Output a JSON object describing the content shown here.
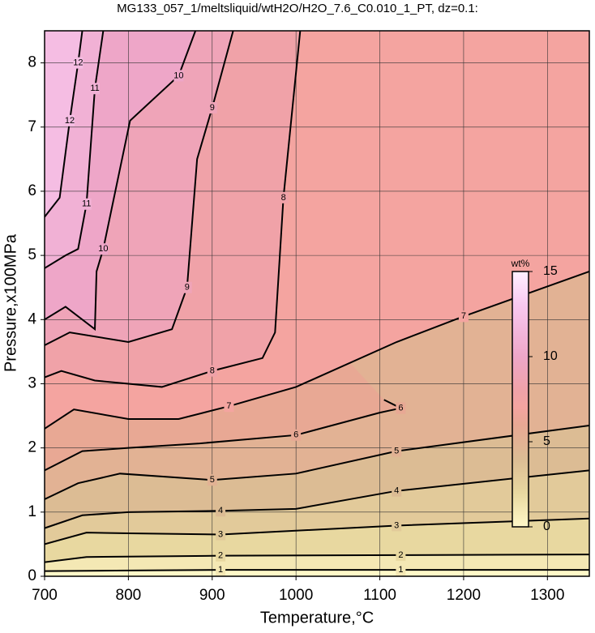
{
  "chart_data": {
    "type": "contour",
    "title": "MG133_057_1/meltsliquid/wtH2O/H2O_7.6_C0.010_1_PT, dz=0.1:",
    "x_label": "Temperature,°C",
    "y_label": "Pressure,x100MPa",
    "xlim": [
      700,
      1350
    ],
    "ylim": [
      0,
      8.5
    ],
    "xticks": [
      700,
      800,
      900,
      1000,
      1100,
      1200,
      1300
    ],
    "yticks": [
      0,
      1,
      2,
      3,
      4,
      5,
      6,
      7,
      8
    ],
    "grid": true,
    "colormap": [
      {
        "value": 0,
        "color": "#fff8c8"
      },
      {
        "value": 2,
        "color": "#e8d8a0"
      },
      {
        "value": 4,
        "color": "#dcbc94"
      },
      {
        "value": 6,
        "color": "#e8a894"
      },
      {
        "value": 7,
        "color": "#f4a4a0"
      },
      {
        "value": 8,
        "color": "#f0a2a8"
      },
      {
        "value": 10,
        "color": "#eea6c8"
      },
      {
        "value": 13,
        "color": "#f8c8f0"
      },
      {
        "value": 15,
        "color": "#fff0ff"
      }
    ],
    "colorbar": {
      "label": "wt%",
      "lim": [
        0,
        15
      ],
      "ticks": [
        0,
        5,
        10,
        15
      ]
    },
    "contours": [
      {
        "level": 1,
        "x": [
          700,
          800,
          910,
          1125,
          1350
        ],
        "y": [
          0.08,
          0.09,
          0.1,
          0.1,
          0.1
        ]
      },
      {
        "level": 2,
        "x": [
          700,
          750,
          910,
          1125,
          1350
        ],
        "y": [
          0.22,
          0.3,
          0.32,
          0.33,
          0.34
        ]
      },
      {
        "level": 3,
        "x": [
          700,
          750,
          800,
          910,
          1120,
          1350
        ],
        "y": [
          0.5,
          0.68,
          0.67,
          0.65,
          0.79,
          0.9
        ]
      },
      {
        "level": 4,
        "x": [
          700,
          745,
          800,
          910,
          1000,
          1120,
          1350
        ],
        "y": [
          0.75,
          0.95,
          1.0,
          1.02,
          1.05,
          1.33,
          1.65
        ]
      },
      {
        "level": 5,
        "x": [
          700,
          740,
          790,
          900,
          1000,
          1120,
          1350
        ],
        "y": [
          1.2,
          1.45,
          1.6,
          1.5,
          1.6,
          1.95,
          2.35
        ]
      },
      {
        "level": 6,
        "x": [
          700,
          745,
          800,
          885,
          1000,
          1100,
          1125,
          1105
        ],
        "y": [
          1.65,
          1.95,
          2.0,
          2.07,
          2.2,
          2.55,
          2.62,
          2.75
        ]
      },
      {
        "level": 7,
        "x": [
          700,
          735,
          800,
          860,
          920,
          1000,
          1120,
          1200,
          1350
        ],
        "y": [
          2.3,
          2.6,
          2.45,
          2.45,
          2.65,
          2.95,
          3.65,
          4.05,
          4.75
        ]
      },
      {
        "level": 8,
        "x": [
          700,
          720,
          760,
          840,
          900,
          960,
          975,
          985,
          1005
        ],
        "y": [
          3.1,
          3.2,
          3.05,
          2.95,
          3.2,
          3.4,
          3.8,
          5.9,
          8.5
        ]
      },
      {
        "level": 9,
        "x": [
          700,
          730,
          800,
          852,
          870,
          882,
          900,
          925
        ],
        "y": [
          3.6,
          3.8,
          3.65,
          3.85,
          4.5,
          6.5,
          7.3,
          8.5
        ]
      },
      {
        "level": 10,
        "x": [
          700,
          725,
          760,
          762,
          770,
          802,
          860,
          880
        ],
        "y": [
          4.0,
          4.2,
          3.85,
          4.75,
          5.1,
          7.1,
          7.8,
          8.5
        ]
      },
      {
        "level": 11,
        "x": [
          700,
          725,
          740,
          750,
          760,
          770
        ],
        "y": [
          4.8,
          5.0,
          5.1,
          5.8,
          7.6,
          8.5
        ]
      },
      {
        "level": 12,
        "x": [
          700,
          718,
          730,
          740,
          745
        ],
        "y": [
          5.6,
          5.9,
          7.1,
          8.0,
          8.5
        ]
      }
    ]
  }
}
